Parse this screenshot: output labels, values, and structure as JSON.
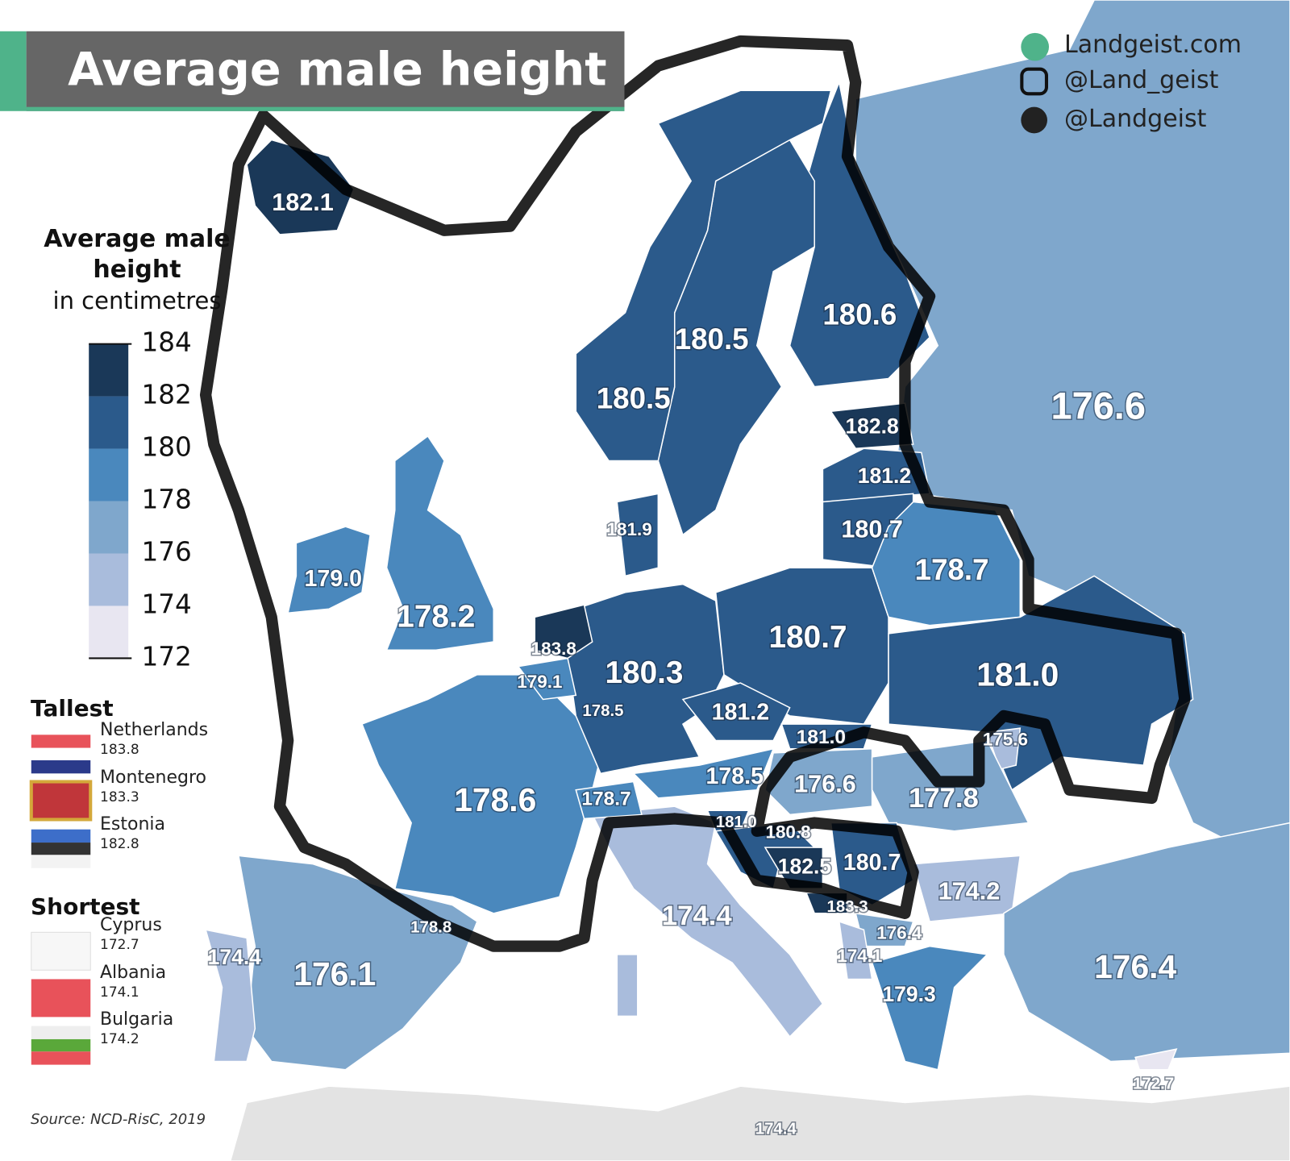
{
  "header": {
    "title": "Average male height"
  },
  "social": [
    "Landgeist.com",
    "@Land_geist",
    "@Landgeist"
  ],
  "legend": {
    "title": "Average male height",
    "subtitle": "in centimetres",
    "ticks": [
      184,
      182,
      180,
      178,
      176,
      174,
      172
    ],
    "colors": [
      "#1a3858",
      "#2b5a8b",
      "#4a88bd",
      "#7fa7cc",
      "#a9bcdc",
      "#e8e6f1"
    ]
  },
  "tallest": {
    "heading": "Tallest",
    "items": [
      {
        "country": "Netherlands",
        "value": "183.8"
      },
      {
        "country": "Montenegro",
        "value": "183.3"
      },
      {
        "country": "Estonia",
        "value": "182.8"
      }
    ]
  },
  "shortest": {
    "heading": "Shortest",
    "items": [
      {
        "country": "Cyprus",
        "value": "172.7"
      },
      {
        "country": "Albania",
        "value": "174.1"
      },
      {
        "country": "Bulgaria",
        "value": "174.2"
      }
    ]
  },
  "map_labels": [
    "182.1",
    "180.5",
    "180.6",
    "180.5",
    "176.6",
    "182.8",
    "181.2",
    "181.9",
    "180.7",
    "179.0",
    "178.7",
    "178.2",
    "183.8",
    "180.7",
    "180.3",
    "181.0",
    "179.1",
    "178.5",
    "181.2",
    "181.0",
    "175.6",
    "178.5",
    "176.6",
    "177.8",
    "178.7",
    "178.6",
    "181.0",
    "180.8",
    "182.5",
    "180.7",
    "174.2",
    "174.4",
    "183.3",
    "178.8",
    "176.4",
    "174.1",
    "174.4",
    "176.1",
    "176.4",
    "179.3",
    "172.7",
    "174.4"
  ],
  "source": "Source: NCD-RisC, 2019"
}
